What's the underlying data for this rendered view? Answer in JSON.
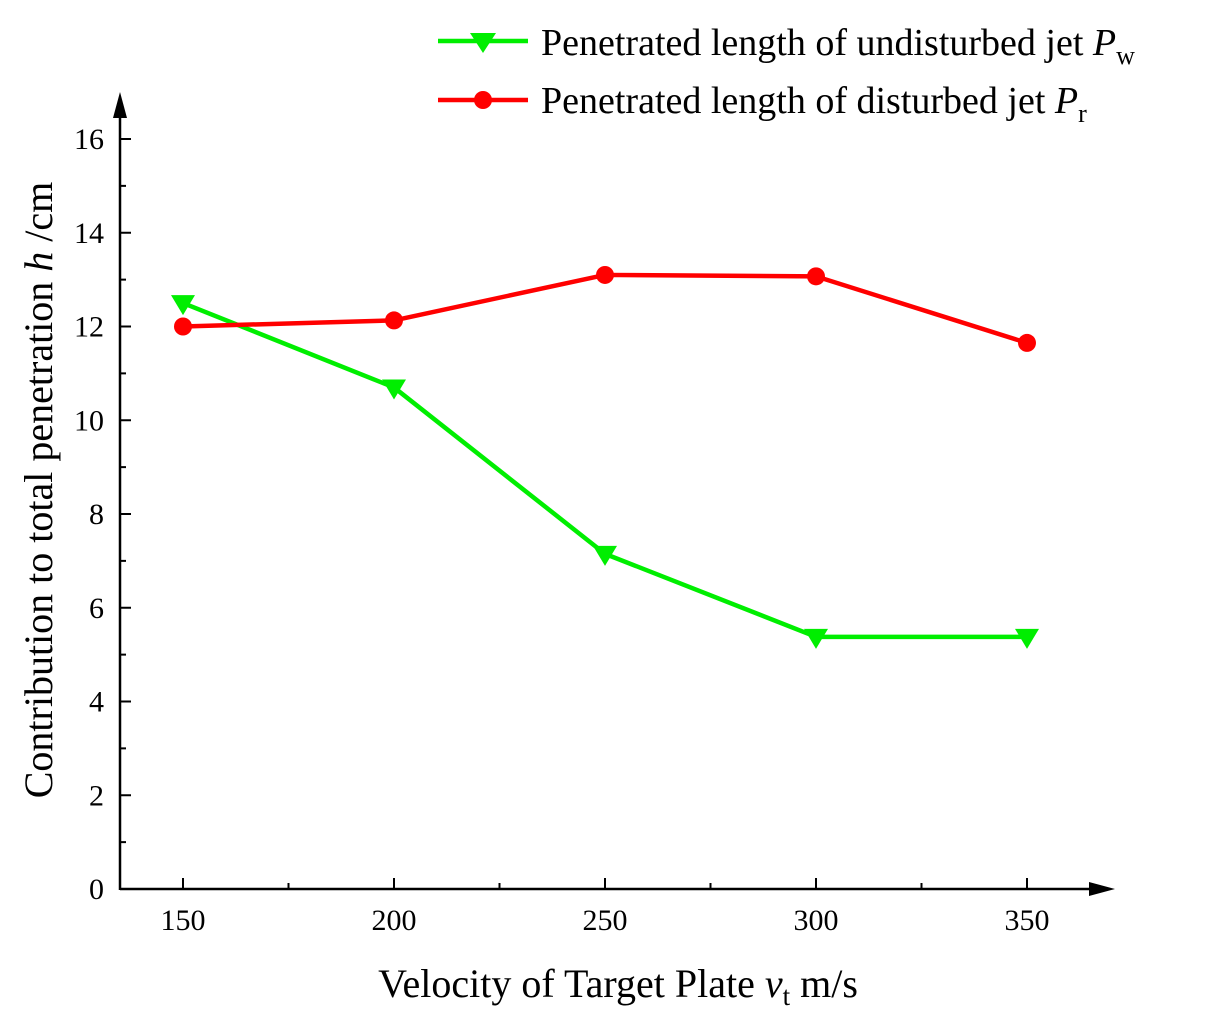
{
  "chart_data": {
    "type": "line",
    "title": "",
    "x": [
      150,
      200,
      250,
      300,
      350
    ],
    "xlim": [
      135,
      370
    ],
    "ylim": [
      0,
      16
    ],
    "xticks": [
      150,
      200,
      250,
      300,
      350
    ],
    "yticks": [
      0,
      2,
      4,
      6,
      8,
      10,
      12,
      14,
      16
    ],
    "xlabel": {
      "main": "Velocity of Target Plate ",
      "var": "v",
      "sub": "t",
      "unit": " m/s"
    },
    "ylabel": {
      "main": "Contribution to total penetration ",
      "var": "h",
      "unit": " /cm"
    },
    "grid": false,
    "legend_position": "top-right",
    "series": [
      {
        "name": "Penetrated length of undisturbed jet ",
        "var": "P",
        "sub": "w",
        "color": "#00ee00",
        "marker": "triangle-down",
        "values": [
          12.5,
          10.7,
          7.15,
          5.38,
          5.38
        ]
      },
      {
        "name": "Penetrated length of disturbed jet ",
        "var": "P",
        "sub": "r",
        "color": "#ff0000",
        "marker": "circle",
        "values": [
          12.0,
          12.13,
          13.1,
          13.07,
          11.65
        ]
      }
    ]
  }
}
